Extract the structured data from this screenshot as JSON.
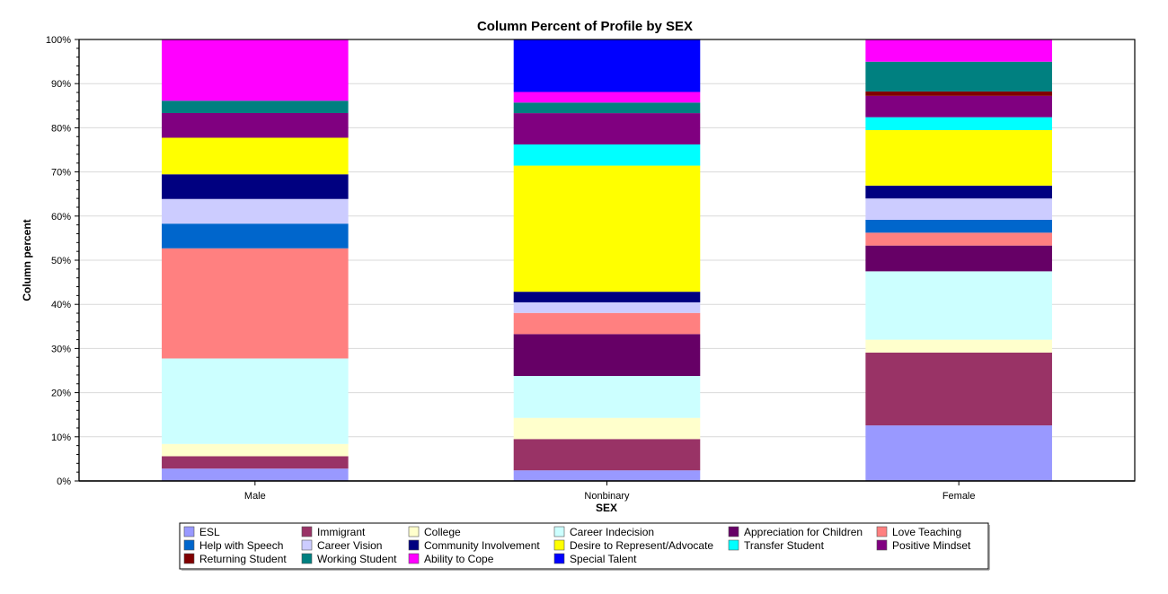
{
  "chart_data": {
    "type": "bar",
    "stacked": true,
    "normalized": true,
    "title": "Column Percent of Profile by SEX",
    "xlabel": "SEX",
    "ylabel": "Column percent",
    "ylim": [
      0,
      100
    ],
    "yticks": [
      "0%",
      "10%",
      "20%",
      "30%",
      "40%",
      "50%",
      "60%",
      "70%",
      "80%",
      "90%",
      "100%"
    ],
    "grid": true,
    "legend_position": "bottom",
    "categories": [
      "Male",
      "Nonbinary",
      "Female"
    ],
    "series": [
      {
        "name": "ESL",
        "color": "#9999FF",
        "values": [
          2.8,
          2.4,
          12.5
        ]
      },
      {
        "name": "Immigrant",
        "color": "#993366",
        "values": [
          2.8,
          7.1,
          16.4
        ]
      },
      {
        "name": "College",
        "color": "#FFFFCC",
        "values": [
          2.8,
          4.8,
          2.9
        ]
      },
      {
        "name": "Career Indecision",
        "color": "#CCFFFF",
        "values": [
          19.4,
          9.5,
          15.4
        ]
      },
      {
        "name": "Appreciation for Children",
        "color": "#660066",
        "values": [
          0,
          9.5,
          5.8
        ]
      },
      {
        "name": "Love Teaching",
        "color": "#FF8080",
        "values": [
          25.0,
          4.8,
          2.9
        ]
      },
      {
        "name": "Help with Speech",
        "color": "#0066CC",
        "values": [
          5.6,
          0,
          2.9
        ]
      },
      {
        "name": "Career Vision",
        "color": "#CCCCFF",
        "values": [
          5.6,
          2.4,
          4.8
        ]
      },
      {
        "name": "Community Involvement",
        "color": "#000080",
        "values": [
          5.6,
          2.4,
          2.9
        ]
      },
      {
        "name": "Desire to Represent/Advocate",
        "color": "#FFFF00",
        "values": [
          8.3,
          28.6,
          12.5
        ]
      },
      {
        "name": "Transfer Student",
        "color": "#00FFFF",
        "values": [
          0,
          4.8,
          2.9
        ]
      },
      {
        "name": "Positive Mindset",
        "color": "#800080",
        "values": [
          5.6,
          7.1,
          4.8
        ]
      },
      {
        "name": "Returning Student",
        "color": "#800000",
        "values": [
          0,
          0,
          1.0
        ]
      },
      {
        "name": "Working Student",
        "color": "#008080",
        "values": [
          2.8,
          2.4,
          6.7
        ]
      },
      {
        "name": "Ability to Cope",
        "color": "#FF00FF",
        "values": [
          13.9,
          2.4,
          5.0
        ]
      },
      {
        "name": "Special Talent",
        "color": "#0000FF",
        "values": [
          0,
          11.9,
          0
        ]
      }
    ]
  }
}
